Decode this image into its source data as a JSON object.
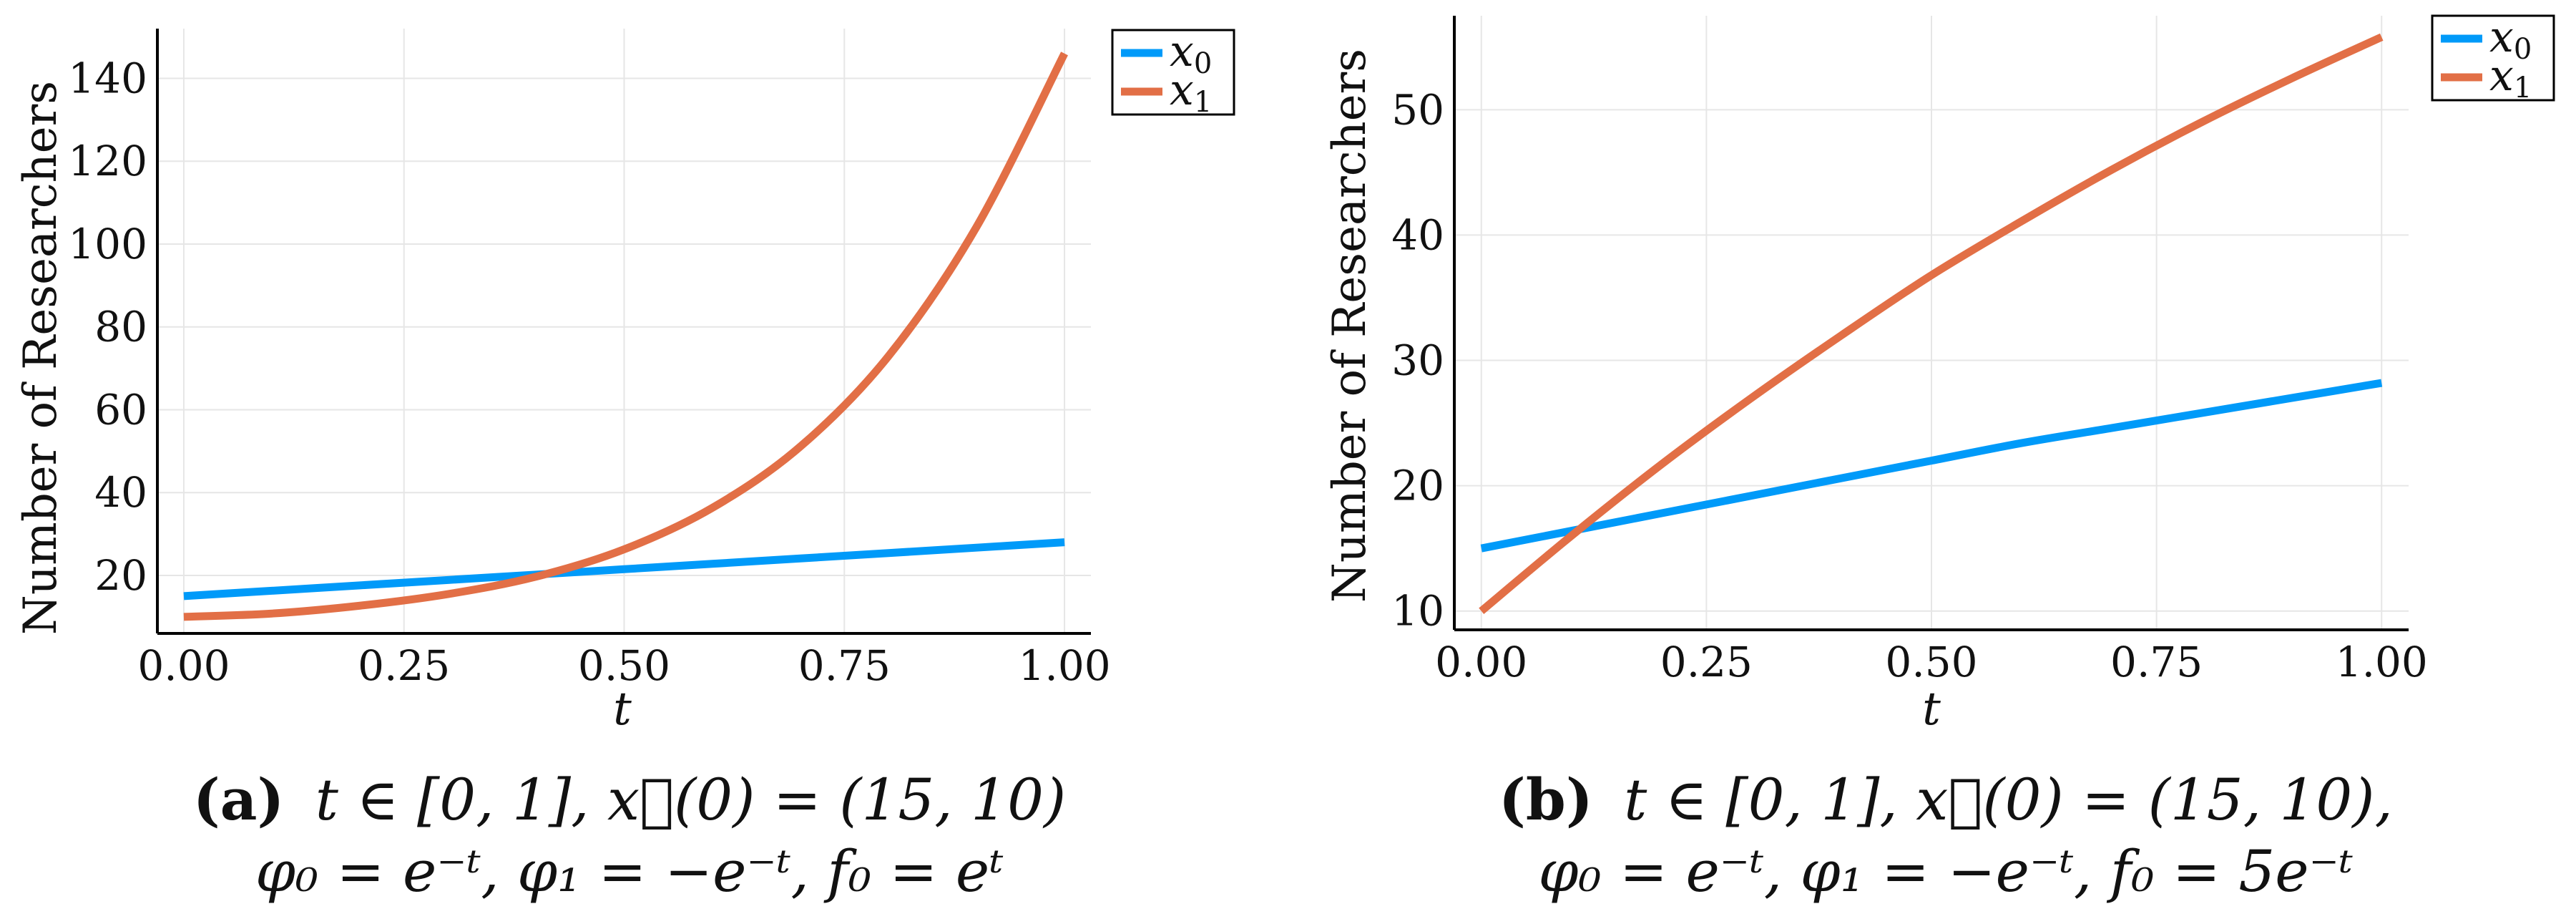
{
  "colors": {
    "x0": "#009af9",
    "x1": "#e26f46",
    "grid": "#e6e6e6",
    "axis": "#000000"
  },
  "chart_data": [
    {
      "id": "a",
      "type": "line",
      "title": "",
      "xlabel": "t",
      "ylabel": "Number of Researchers",
      "xlim": [
        -0.03,
        1.03
      ],
      "ylim": [
        6,
        152
      ],
      "xticks": [
        0,
        0.25,
        0.5,
        0.75,
        1
      ],
      "xtick_labels": [
        "0.00",
        "0.25",
        "0.50",
        "0.75",
        "1.00"
      ],
      "yticks": [
        20,
        40,
        60,
        80,
        100,
        120,
        140
      ],
      "ytick_labels": [
        "20",
        "40",
        "60",
        "80",
        "100",
        "120",
        "140"
      ],
      "grid": true,
      "legend_position": "top-right",
      "x": [
        0,
        0.1,
        0.2,
        0.3,
        0.4,
        0.5,
        0.6,
        0.7,
        0.8,
        0.9,
        1.0
      ],
      "series": [
        {
          "name": "x0",
          "sub": "0",
          "values": [
            15.0,
            16.3,
            17.6,
            18.9,
            20.2,
            21.5,
            22.8,
            24.1,
            25.4,
            26.7,
            28.0
          ]
        },
        {
          "name": "x1",
          "sub": "1",
          "values": [
            10.0,
            10.8,
            12.7,
            15.5,
            19.7,
            26.3,
            36.3,
            51.1,
            72.9,
            104.1,
            146.0
          ]
        }
      ],
      "caption": {
        "label": "(a)",
        "line1": "t ∈ [0, 1], x⃗(0) = (15, 10)",
        "line2": "φ₀ = e⁻ᵗ, φ₁ = −e⁻ᵗ, f₀ = eᵗ"
      }
    },
    {
      "id": "b",
      "type": "line",
      "title": "",
      "xlabel": "t",
      "ylabel": "Number of Researchers",
      "xlim": [
        -0.03,
        1.03
      ],
      "ylim": [
        8.5,
        57.5
      ],
      "xticks": [
        0,
        0.25,
        0.5,
        0.75,
        1
      ],
      "xtick_labels": [
        "0.00",
        "0.25",
        "0.50",
        "0.75",
        "1.00"
      ],
      "yticks": [
        10,
        20,
        30,
        40,
        50
      ],
      "ytick_labels": [
        "10",
        "20",
        "30",
        "40",
        "50"
      ],
      "grid": true,
      "legend_position": "top-right",
      "x": [
        0,
        0.1,
        0.2,
        0.3,
        0.4,
        0.5,
        0.6,
        0.7,
        0.8,
        0.9,
        1.0
      ],
      "series": [
        {
          "name": "x0",
          "sub": "0",
          "values": [
            15.0,
            16.4,
            17.8,
            19.2,
            20.6,
            22.0,
            23.4,
            24.6,
            25.8,
            27.0,
            28.2
          ]
        },
        {
          "name": "x1",
          "sub": "1",
          "values": [
            10.0,
            16.0,
            21.7,
            27.0,
            32.0,
            36.8,
            41.1,
            45.2,
            49.0,
            52.5,
            55.8
          ]
        }
      ],
      "caption": {
        "label": "(b)",
        "line1": "t ∈ [0, 1], x⃗(0) = (15, 10),",
        "line2": "φ₀ = e⁻ᵗ, φ₁ = −e⁻ᵗ, f₀ = 5e⁻ᵗ"
      }
    }
  ]
}
